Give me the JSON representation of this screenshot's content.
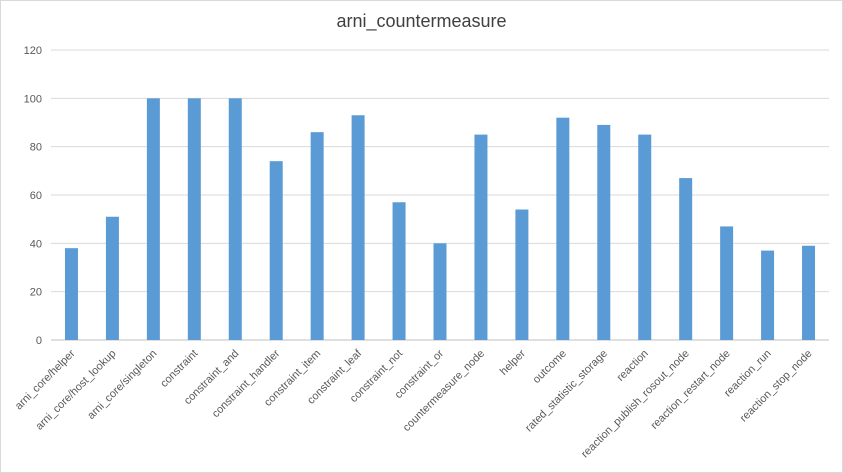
{
  "chart_data": {
    "type": "bar",
    "title": "arni_countermeasure",
    "xlabel": "",
    "ylabel": "",
    "ylim": [
      0,
      120
    ],
    "yticks": [
      0,
      20,
      40,
      60,
      80,
      100,
      120
    ],
    "grid": true,
    "legend": "none",
    "bar_color": "#5b9bd5",
    "categories": [
      "arni_core/helper",
      "arni_core/host_lookup",
      "arni_core/singleton",
      "constraint",
      "constraint_and",
      "constraint_handler",
      "constraint_item",
      "constraint_leaf",
      "constraint_not",
      "constraint_or",
      "countermeasure_node",
      "helper",
      "outcome",
      "rated_statistic_storage",
      "reaction",
      "reaction_publish_rosout_node",
      "reaction_restart_node",
      "reaction_run",
      "reaction_stop_node"
    ],
    "values": [
      38,
      51,
      100,
      100,
      100,
      74,
      86,
      93,
      57,
      40,
      85,
      54,
      92,
      89,
      85,
      67,
      47,
      37,
      39
    ]
  }
}
